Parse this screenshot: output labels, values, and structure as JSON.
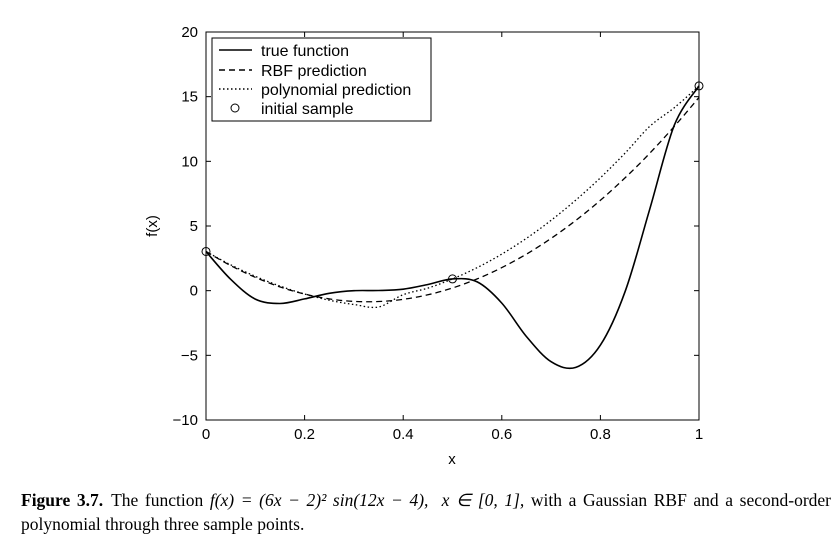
{
  "chart_data": {
    "type": "line",
    "xlabel": "x",
    "ylabel": "f(x)",
    "xlim": [
      0,
      1
    ],
    "ylim": [
      -10,
      20
    ],
    "xticks": [
      "0",
      "0.2",
      "0.4",
      "0.6",
      "0.8",
      "1"
    ],
    "xtick_values": [
      0,
      0.2,
      0.4,
      0.6,
      0.8,
      1
    ],
    "yticks": [
      "−10",
      "−5",
      "0",
      "5",
      "10",
      "15",
      "20"
    ],
    "ytick_values": [
      -10,
      -5,
      0,
      5,
      10,
      15,
      20
    ],
    "grid": false,
    "legend_position": "top-left",
    "legend": [
      "true function",
      "RBF prediction",
      "polynomial prediction",
      "initial sample"
    ],
    "series": [
      {
        "name": "true function",
        "style": "solid",
        "x": [
          0,
          0.05,
          0.1,
          0.15,
          0.2,
          0.25,
          0.3,
          0.35,
          0.4,
          0.45,
          0.5,
          0.55,
          0.6,
          0.65,
          0.7,
          0.75,
          0.8,
          0.85,
          0.9,
          0.95,
          1
        ],
        "y": [
          3.03,
          0.88,
          -0.65,
          -0.99,
          -0.64,
          -0.2,
          0.0,
          0.01,
          0.11,
          0.48,
          0.91,
          0.68,
          -0.96,
          -3.55,
          -5.49,
          -5.93,
          -4.21,
          -0.09,
          6.29,
          12.79,
          15.83
        ]
      },
      {
        "name": "RBF prediction",
        "style": "dashed",
        "x": [
          0,
          0.05,
          0.1,
          0.15,
          0.2,
          0.25,
          0.3,
          0.35,
          0.4,
          0.45,
          0.5,
          0.55,
          0.6,
          0.65,
          0.7,
          0.75,
          0.8,
          0.85,
          0.9,
          0.95,
          1
        ],
        "y": [
          3.03,
          1.94,
          1.03,
          0.29,
          -0.26,
          -0.64,
          -0.83,
          -0.84,
          -0.67,
          -0.32,
          0.21,
          0.91,
          1.78,
          2.83,
          4.04,
          5.43,
          6.99,
          8.72,
          10.62,
          12.7,
          14.94
        ]
      },
      {
        "name": "polynomial prediction",
        "style": "dotted",
        "x": [
          0,
          0.05,
          0.1,
          0.15,
          0.2,
          0.25,
          0.3,
          0.35,
          0.4,
          0.45,
          0.5,
          0.55,
          0.6,
          0.65,
          0.7,
          0.75,
          0.8,
          0.85,
          0.9,
          0.95,
          1
        ],
        "y": [
          3.03,
          2.0,
          1.11,
          0.36,
          -0.26,
          -0.74,
          -1.07,
          -1.26,
          -0.31,
          0.2,
          0.91,
          1.78,
          2.83,
          4.05,
          5.44,
          7.0,
          8.73,
          10.63,
          12.7,
          14.15,
          15.83
        ]
      },
      {
        "name": "initial sample",
        "style": "marker",
        "x": [
          0,
          0.5,
          1
        ],
        "y": [
          3.03,
          0.91,
          15.83
        ]
      }
    ]
  },
  "caption": {
    "label": "Figure 3.7.",
    "text_pre": "The function ",
    "formula": "f(x) = (6x − 2)² sin(12x − 4),",
    "domain": "x ∈ [0, 1],",
    "text_post": " with a Gaussian RBF and a second-order polynomial through three sample points."
  }
}
